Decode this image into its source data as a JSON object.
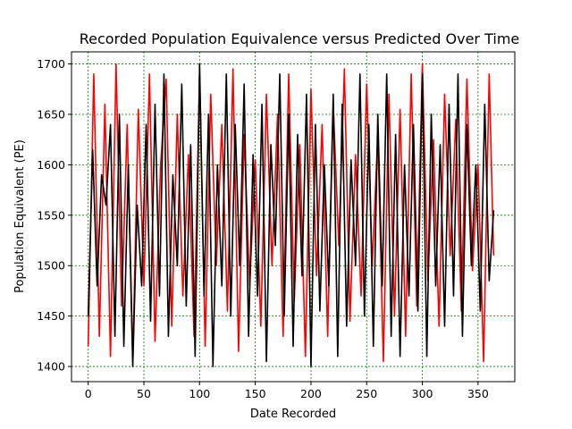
{
  "chart_data": {
    "type": "line",
    "title": "Recorded Population Equivalence versus Predicted Over Time",
    "xlabel": "Date Recorded",
    "ylabel": "Population Equivalent (PE)",
    "xlim": [
      -15,
      383
    ],
    "ylim": [
      1385,
      1712
    ],
    "x_ticks": [
      0,
      50,
      100,
      150,
      200,
      250,
      300,
      350
    ],
    "y_ticks": [
      1400,
      1450,
      1500,
      1550,
      1600,
      1650,
      1700
    ],
    "grid": true,
    "grid_color": "#008000",
    "legend": "none",
    "series": [
      {
        "color": "#ff0000",
        "x": [
          0,
          5,
          10,
          15,
          20,
          25,
          30,
          35,
          40,
          45,
          50,
          55,
          60,
          65,
          70,
          75,
          80,
          85,
          90,
          95,
          100,
          105,
          110,
          115,
          120,
          125,
          130,
          135,
          140,
          145,
          150,
          155,
          160,
          165,
          170,
          175,
          180,
          185,
          190,
          195,
          200,
          205,
          210,
          215,
          220,
          225,
          230,
          235,
          240,
          245,
          250,
          255,
          260,
          265,
          270,
          275,
          280,
          285,
          290,
          295,
          300,
          305,
          310,
          315,
          320,
          325,
          330,
          335,
          340,
          345,
          350,
          355,
          360,
          364
        ],
        "values": [
          1420,
          1690,
          1430,
          1660,
          1410,
          1700,
          1460,
          1640,
          1405,
          1655,
          1480,
          1690,
          1425,
          1600,
          1685,
          1440,
          1650,
          1470,
          1610,
          1430,
          1690,
          1420,
          1670,
          1500,
          1640,
          1455,
          1695,
          1415,
          1630,
          1480,
          1605,
          1440,
          1670,
          1500,
          1650,
          1430,
          1690,
          1465,
          1620,
          1410,
          1675,
          1490,
          1640,
          1430,
          1660,
          1520,
          1695,
          1445,
          1610,
          1470,
          1680,
          1500,
          1630,
          1405,
          1670,
          1450,
          1655,
          1430,
          1690,
          1460,
          1700,
          1485,
          1625,
          1440,
          1670,
          1510,
          1645,
          1455,
          1685,
          1495,
          1600,
          1405,
          1690,
          1510
        ]
      },
      {
        "color": "#000000",
        "x": [
          0,
          4,
          8,
          12,
          16,
          20,
          24,
          28,
          32,
          36,
          40,
          44,
          48,
          52,
          56,
          60,
          64,
          68,
          72,
          76,
          80,
          84,
          88,
          92,
          96,
          100,
          104,
          108,
          112,
          116,
          120,
          124,
          128,
          132,
          136,
          140,
          144,
          148,
          152,
          156,
          160,
          164,
          168,
          172,
          176,
          180,
          184,
          188,
          192,
          196,
          200,
          204,
          208,
          212,
          216,
          220,
          224,
          228,
          232,
          236,
          240,
          244,
          248,
          252,
          256,
          260,
          264,
          268,
          272,
          276,
          280,
          284,
          288,
          292,
          296,
          300,
          304,
          308,
          312,
          316,
          320,
          324,
          328,
          332,
          336,
          340,
          344,
          348,
          352,
          356,
          360,
          364
        ],
        "values": [
          1450,
          1615,
          1480,
          1590,
          1560,
          1640,
          1430,
          1650,
          1420,
          1600,
          1400,
          1560,
          1480,
          1640,
          1445,
          1660,
          1470,
          1690,
          1430,
          1590,
          1500,
          1680,
          1460,
          1620,
          1410,
          1700,
          1470,
          1650,
          1400,
          1600,
          1480,
          1690,
          1450,
          1640,
          1500,
          1680,
          1430,
          1610,
          1470,
          1660,
          1405,
          1620,
          1520,
          1690,
          1450,
          1650,
          1420,
          1630,
          1490,
          1670,
          1400,
          1640,
          1455,
          1600,
          1480,
          1670,
          1410,
          1660,
          1440,
          1605,
          1500,
          1690,
          1450,
          1640,
          1420,
          1650,
          1480,
          1690,
          1430,
          1630,
          1410,
          1600,
          1470,
          1640,
          1455,
          1690,
          1410,
          1650,
          1480,
          1620,
          1440,
          1660,
          1470,
          1690,
          1430,
          1640,
          1500,
          1600,
          1455,
          1660,
          1485,
          1555
        ]
      }
    ]
  }
}
